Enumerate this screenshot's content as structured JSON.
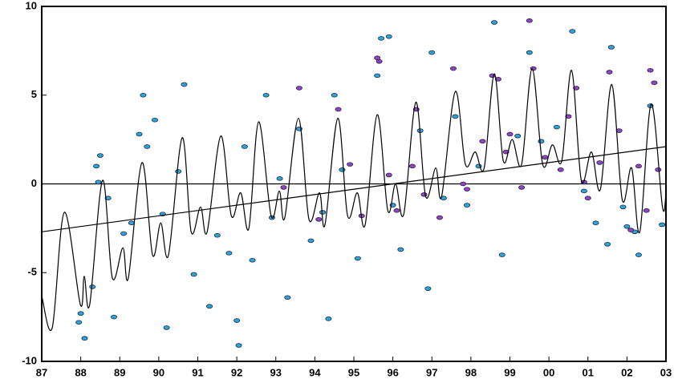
{
  "chart_data": {
    "type": "scatter",
    "xlim": [
      1987,
      2003
    ],
    "ylim": [
      -10,
      10
    ],
    "xticks": [
      {
        "value": 1987,
        "label": "87"
      },
      {
        "value": 1988,
        "label": "88"
      },
      {
        "value": 1989,
        "label": "89"
      },
      {
        "value": 1990,
        "label": "90"
      },
      {
        "value": 1991,
        "label": "91"
      },
      {
        "value": 1992,
        "label": "92"
      },
      {
        "value": 1993,
        "label": "93"
      },
      {
        "value": 1994,
        "label": "94"
      },
      {
        "value": 1995,
        "label": "95"
      },
      {
        "value": 1996,
        "label": "96"
      },
      {
        "value": 1997,
        "label": "97"
      },
      {
        "value": 1998,
        "label": "98"
      },
      {
        "value": 1999,
        "label": "99"
      },
      {
        "value": 2000,
        "label": "00"
      },
      {
        "value": 2001,
        "label": "01"
      },
      {
        "value": 2002,
        "label": "02"
      },
      {
        "value": 2003,
        "label": "03"
      }
    ],
    "yticks": [
      -10,
      -5,
      0,
      5,
      10
    ],
    "zero_line": true,
    "series": [
      {
        "type": "scatter",
        "color": "#2ba6dc",
        "x": [
          1988.0,
          1987.95,
          1988.1,
          1988.3,
          1988.4,
          1988.5,
          1988.45,
          1988.7,
          1988.85,
          1989.1,
          1989.3,
          1989.5,
          1989.6,
          1989.7,
          1989.9,
          1990.1,
          1990.2,
          1990.5,
          1990.65,
          1990.9,
          1991.3,
          1991.5,
          1991.8,
          1992.0,
          1992.05,
          1992.2,
          1992.4,
          1992.75,
          1992.9,
          1993.1,
          1993.3,
          1993.6,
          1993.9,
          1994.2,
          1994.35,
          1994.5,
          1994.7,
          1995.1,
          1995.6,
          1995.7,
          1995.9,
          1996.0,
          1996.2,
          1996.7,
          1996.9,
          1997.0,
          1997.3,
          1997.6,
          1997.9,
          1998.2,
          1998.6,
          1998.8,
          1999.2,
          1999.5,
          1999.8,
          2000.2,
          2000.6,
          2000.9,
          2001.2,
          2001.5,
          2001.6,
          2001.9,
          2002.0,
          2002.2,
          2002.3,
          2002.6,
          2002.9
        ],
        "values": [
          -7.3,
          -7.8,
          -8.7,
          -5.8,
          1.0,
          1.6,
          0.1,
          -0.8,
          -7.5,
          -2.8,
          -2.2,
          2.8,
          5.0,
          2.1,
          3.6,
          -1.7,
          -8.1,
          0.7,
          5.6,
          -5.1,
          -6.9,
          -2.9,
          -3.9,
          -7.7,
          -9.1,
          2.1,
          -4.3,
          5.0,
          -1.9,
          0.3,
          -6.4,
          3.1,
          -3.2,
          -1.6,
          -7.6,
          5.0,
          0.8,
          -4.2,
          6.1,
          8.2,
          8.3,
          -1.2,
          -3.7,
          3.0,
          -5.9,
          7.4,
          -0.8,
          3.8,
          -1.2,
          1.0,
          9.1,
          -4.0,
          2.7,
          7.4,
          2.4,
          3.2,
          8.6,
          -0.4,
          -2.2,
          -3.4,
          7.7,
          -1.3,
          -2.4,
          -2.7,
          -4.0,
          4.4,
          -2.3
        ]
      },
      {
        "type": "scatter",
        "color": "#9a3fc6",
        "x": [
          1995.6,
          1995.65,
          1993.6,
          1996.6,
          1997.55,
          1998.55,
          1999.5,
          1999.6,
          2000.7,
          2001.55,
          2002.6,
          1994.6,
          1993.2,
          1994.1,
          1995.2,
          1996.1,
          1996.5,
          1997.2,
          1997.8,
          1998.3,
          1998.9,
          1999.3,
          1999.9,
          2000.3,
          2000.9,
          2001.3,
          2001.8,
          2002.1,
          2002.5,
          2002.8,
          1994.9,
          1995.9,
          1996.8,
          1997.9,
          1998.7,
          1999.0,
          2000.5,
          2001.0,
          2002.3,
          2002.7
        ],
        "values": [
          7.1,
          6.9,
          5.4,
          4.2,
          6.5,
          6.1,
          9.2,
          6.5,
          5.4,
          6.3,
          6.4,
          4.2,
          -0.2,
          -2.0,
          -1.8,
          -1.5,
          1.0,
          -1.9,
          0.0,
          2.4,
          1.8,
          -0.2,
          1.5,
          0.8,
          0.1,
          1.2,
          3.0,
          -2.6,
          -1.5,
          0.8,
          1.1,
          0.5,
          -0.6,
          -0.3,
          5.9,
          2.8,
          3.8,
          -0.8,
          1.0,
          5.7
        ]
      },
      {
        "type": "line",
        "color": "#000000",
        "smooth": true,
        "x": [
          1987.0,
          1987.27,
          1987.58,
          1987.99,
          1988.09,
          1988.23,
          1988.56,
          1988.81,
          1989.08,
          1989.22,
          1989.57,
          1989.84,
          1990.05,
          1990.25,
          1990.6,
          1990.83,
          1991.07,
          1991.24,
          1991.59,
          1991.86,
          1992.1,
          1992.31,
          1992.56,
          1992.88,
          1993.09,
          1993.23,
          1993.58,
          1993.85,
          1994.12,
          1994.26,
          1994.59,
          1994.84,
          1995.09,
          1995.29,
          1995.6,
          1995.87,
          1996.07,
          1996.28,
          1996.59,
          1996.84,
          1997.1,
          1997.25,
          1997.6,
          1997.86,
          1998.11,
          1998.34,
          1998.6,
          1998.83,
          1999.06,
          1999.3,
          1999.57,
          1999.84,
          2000.09,
          2000.33,
          2000.58,
          2000.83,
          2001.09,
          2001.32,
          2001.61,
          2001.88,
          2002.12,
          2002.33,
          2002.62,
          2002.91,
          2003.0
        ],
        "values": [
          -6.3,
          -8.1,
          -1.6,
          -6.8,
          -5.2,
          -6.8,
          0.2,
          -5.3,
          -3.6,
          -5.3,
          1.2,
          -4.0,
          -2.2,
          -4.0,
          2.6,
          -2.7,
          -1.3,
          -2.7,
          2.7,
          -1.8,
          -0.5,
          -2.5,
          3.5,
          -1.8,
          -0.4,
          -1.9,
          3.7,
          -2.0,
          -0.5,
          -2.3,
          3.7,
          -1.8,
          -0.5,
          -2.3,
          3.9,
          -1.5,
          0.0,
          -1.7,
          4.6,
          -0.7,
          0.9,
          -0.7,
          5.2,
          1.1,
          1.8,
          0.9,
          6.2,
          1.3,
          2.5,
          1.1,
          6.5,
          1.1,
          2.2,
          1.3,
          6.4,
          0.2,
          1.8,
          -0.3,
          5.6,
          -0.9,
          0.9,
          -2.7,
          4.5,
          -1.3,
          -0.5
        ]
      },
      {
        "type": "line",
        "color": "#000000",
        "smooth": false,
        "x": [
          1987,
          2003
        ],
        "values": [
          -2.7,
          2.1
        ]
      }
    ]
  }
}
